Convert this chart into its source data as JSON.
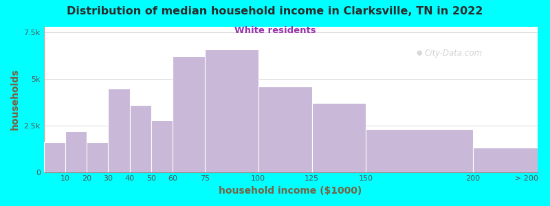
{
  "title": "Distribution of median household income in Clarksville, TN in 2022",
  "subtitle": "White residents",
  "xlabel": "household income ($1000)",
  "ylabel": "households",
  "background_outer": "#00FFFF",
  "bar_color": "#C9B8D8",
  "bar_edge_color": "#FFFFFF",
  "title_color": "#2a2a2a",
  "subtitle_color": "#9933AA",
  "axis_label_color": "#7a6040",
  "tick_label_color": "#555555",
  "watermark_text": "City-Data.com",
  "figsize": [
    8.0,
    3.0
  ],
  "dpi": 100,
  "ylim": [
    0,
    7800
  ],
  "yticks": [
    0,
    2500,
    5000,
    7500
  ],
  "ytick_labels": [
    "0",
    "2.5k",
    "5k",
    "7.5k"
  ],
  "bin_edges": [
    0,
    10,
    20,
    30,
    40,
    50,
    60,
    75,
    100,
    125,
    150,
    200,
    230
  ],
  "x_tick_positions": [
    10,
    20,
    30,
    40,
    50,
    60,
    75,
    100,
    125,
    150,
    200
  ],
  "x_tick_labels": [
    "10",
    "20",
    "30",
    "40",
    "50",
    "60",
    "75",
    "100",
    "125",
    "150",
    "200"
  ],
  "x_extra_tick_pos": 225,
  "x_extra_tick_label": "> 200",
  "values": [
    1600,
    2200,
    1600,
    4500,
    3600,
    2800,
    6200,
    6600,
    4600,
    3700,
    2300,
    1300
  ]
}
